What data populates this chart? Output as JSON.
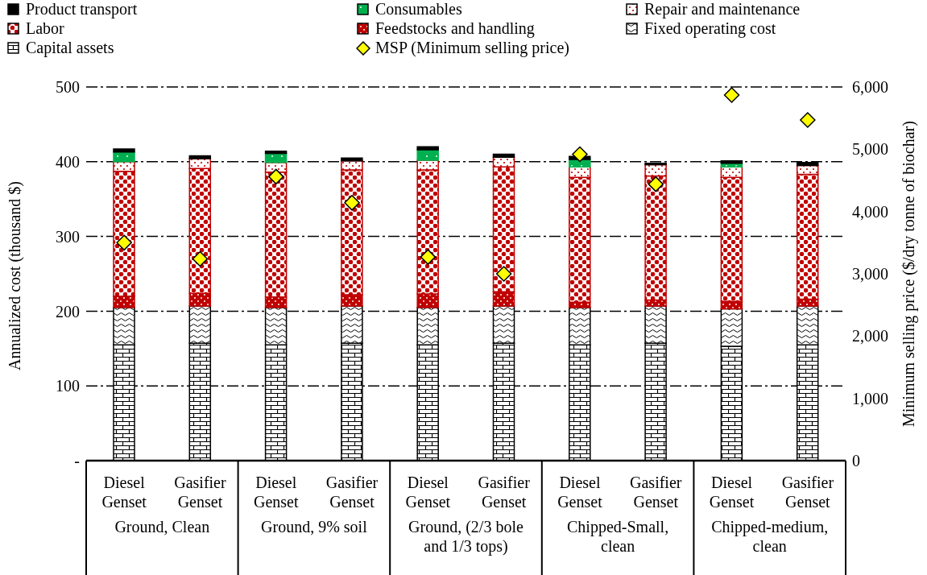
{
  "chart_data": {
    "type": "bar",
    "stacked": true,
    "categories": [
      "Diesel Genset",
      "Gasifier Genset",
      "Diesel Genset",
      "Gasifier Genset",
      "Diesel Genset",
      "Gasifier Genset",
      "Diesel Genset",
      "Gasifier Genset",
      "Diesel Genset",
      "Gasifier Genset"
    ],
    "annotations": [
      "Ground, Clean",
      "Ground, 9% soil",
      "Ground, (2/3 bole and 1/3 tops)",
      "Chipped-Small, clean",
      "Chipped-medium, clean"
    ],
    "ylabel": "Annualized cost (thousand $)",
    "y2label": "Minimum selling price ($/dry tonne of biochar)",
    "ylim": [
      0,
      500
    ],
    "yticks": [
      {
        "value": 0,
        "label": "-"
      },
      100,
      200,
      300,
      400,
      500
    ],
    "y2lim": [
      0,
      6000
    ],
    "y2ticks": [
      0,
      {
        "value": 1000,
        "label": "1,000"
      },
      {
        "value": 2000,
        "label": "2,000"
      },
      {
        "value": 3000,
        "label": "3,000"
      },
      {
        "value": 4000,
        "label": "4,000"
      },
      {
        "value": 5000,
        "label": "5,000"
      },
      {
        "value": 6000,
        "label": "6,000"
      }
    ],
    "grid": "y",
    "legend": "top",
    "series": [
      {
        "name": "Capital assets",
        "color": "#000000",
        "values": [
          155,
          157,
          155,
          157,
          155,
          157,
          155,
          157,
          153,
          155
        ]
      },
      {
        "name": "Fixed operating cost",
        "color": "#000000",
        "values": [
          50,
          50,
          50,
          50,
          50,
          50,
          50,
          50,
          50,
          52
        ]
      },
      {
        "name": "Feedstocks and handling",
        "color": "#c00000",
        "values": [
          15,
          17,
          14,
          15,
          18,
          19,
          7,
          8,
          10,
          9
        ]
      },
      {
        "name": "Labor",
        "color": "#c00000",
        "values": [
          167,
          167,
          167,
          167,
          166,
          167,
          167,
          166,
          166,
          167
        ]
      },
      {
        "name": "Repair and maintenance",
        "color": "#c00000",
        "values": [
          13,
          13,
          13,
          12,
          13,
          13,
          14,
          15,
          14,
          12
        ]
      },
      {
        "name": "Consumables",
        "color": "#00b050",
        "values": [
          13,
          0,
          12,
          0,
          14,
          0,
          10,
          0,
          5,
          0
        ]
      },
      {
        "name": "Product transport",
        "color": "#000000",
        "values": [
          4,
          4,
          3,
          4,
          4,
          4,
          4,
          2,
          3,
          4
        ]
      },
      {
        "name": "MSP (Minimum selling price)",
        "type": "scatter",
        "axis": "y2",
        "marker": "diamond",
        "color": "#ffff00",
        "values": [
          3500,
          3240,
          4560,
          4140,
          3270,
          3000,
          4920,
          4440,
          5870,
          5470
        ]
      }
    ]
  }
}
